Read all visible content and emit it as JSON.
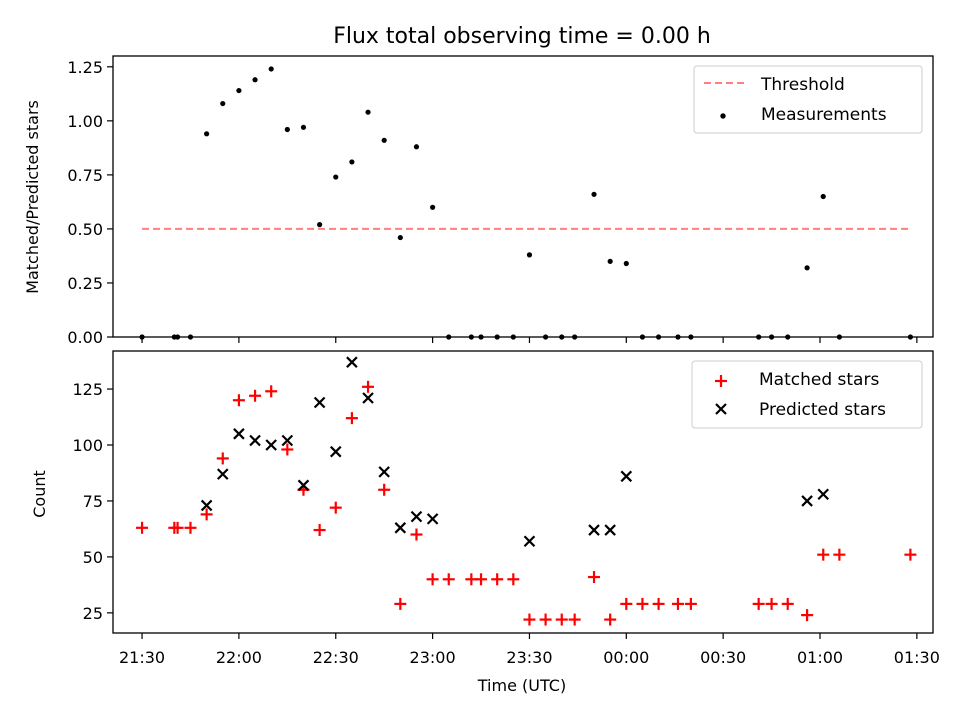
{
  "chart_data": [
    {
      "type": "scatter",
      "title": "Flux total observing time = 0.00 h",
      "xlabel": "",
      "ylabel": "Matched/Predicted stars",
      "xlim": [
        "21:21",
        "01:35"
      ],
      "ylim": [
        0,
        1.3
      ],
      "yticks": [
        "0.00",
        "0.25",
        "0.50",
        "0.75",
        "1.00",
        "1.25"
      ],
      "ytick_values": [
        0,
        0.25,
        0.5,
        0.75,
        1.0,
        1.25
      ],
      "legend_position": "upper right",
      "grid": false,
      "series": [
        {
          "name": "Threshold",
          "kind": "dashed-line",
          "color": "#ff7f7f",
          "x": [
            "21:30",
            "01:28"
          ],
          "y": [
            0.5,
            0.5
          ]
        },
        {
          "name": "Measurements",
          "kind": "dots",
          "color": "#000000",
          "x": [
            "21:30",
            "21:40",
            "21:41",
            "21:45",
            "21:50",
            "21:55",
            "22:00",
            "22:05",
            "22:10",
            "22:15",
            "22:20",
            "22:25",
            "22:30",
            "22:35",
            "22:40",
            "22:45",
            "22:50",
            "22:55",
            "23:00",
            "23:05",
            "23:12",
            "23:15",
            "23:20",
            "23:25",
            "23:30",
            "23:35",
            "23:40",
            "23:44",
            "23:50",
            "23:55",
            "00:00",
            "00:05",
            "00:10",
            "00:16",
            "00:20",
            "00:41",
            "00:45",
            "00:50",
            "00:56",
            "01:01",
            "01:06",
            "01:28"
          ],
          "y": [
            0,
            0,
            0,
            0,
            0.94,
            1.08,
            1.14,
            1.19,
            1.24,
            0.96,
            0.97,
            0.52,
            0.74,
            0.81,
            1.04,
            0.91,
            0.46,
            0.88,
            0.6,
            0,
            0,
            0,
            0,
            0,
            0.38,
            0,
            0,
            0,
            0.66,
            0.35,
            0.34,
            0,
            0,
            0,
            0,
            0,
            0,
            0,
            0.32,
            0.65,
            0,
            0
          ]
        }
      ]
    },
    {
      "type": "scatter",
      "title": "",
      "xlabel": "Time (UTC)",
      "ylabel": "Count",
      "xlim": [
        "21:21",
        "01:35"
      ],
      "ylim": [
        16,
        142
      ],
      "xticks": [
        "21:30",
        "22:00",
        "22:30",
        "23:00",
        "23:30",
        "00:00",
        "00:30",
        "01:00",
        "01:30"
      ],
      "yticks": [
        "25",
        "50",
        "75",
        "100",
        "125"
      ],
      "ytick_values": [
        25,
        50,
        75,
        100,
        125
      ],
      "legend_position": "upper right",
      "grid": false,
      "series": [
        {
          "name": "Matched stars",
          "marker": "plus",
          "color": "#ff0000",
          "x": [
            "21:30",
            "21:40",
            "21:41",
            "21:45",
            "21:50",
            "21:55",
            "22:00",
            "22:05",
            "22:10",
            "22:15",
            "22:20",
            "22:25",
            "22:30",
            "22:35",
            "22:40",
            "22:45",
            "22:50",
            "22:55",
            "23:00",
            "23:05",
            "23:12",
            "23:15",
            "23:20",
            "23:25",
            "23:30",
            "23:35",
            "23:40",
            "23:44",
            "23:50",
            "23:55",
            "00:00",
            "00:05",
            "00:10",
            "00:16",
            "00:20",
            "00:41",
            "00:45",
            "00:50",
            "00:56",
            "01:01",
            "01:06",
            "01:28"
          ],
          "y": [
            63,
            63,
            63,
            63,
            69,
            94,
            120,
            122,
            124,
            98,
            80,
            62,
            72,
            112,
            126,
            80,
            29,
            60,
            40,
            40,
            40,
            40,
            40,
            40,
            22,
            22,
            22,
            22,
            41,
            22,
            29,
            29,
            29,
            29,
            29,
            29,
            29,
            29,
            24,
            51,
            51,
            51
          ]
        },
        {
          "name": "Predicted stars",
          "marker": "x",
          "color": "#000000",
          "x": [
            "21:50",
            "21:55",
            "22:00",
            "22:05",
            "22:10",
            "22:15",
            "22:20",
            "22:25",
            "22:30",
            "22:35",
            "22:40",
            "22:45",
            "22:50",
            "22:55",
            "23:00",
            "23:30",
            "23:50",
            "23:55",
            "00:00",
            "00:56",
            "01:01"
          ],
          "y": [
            73,
            87,
            105,
            102,
            100,
            102,
            82,
            119,
            97,
            137,
            121,
            88,
            63,
            68,
            67,
            57,
            62,
            62,
            86,
            75,
            78
          ]
        }
      ]
    }
  ]
}
